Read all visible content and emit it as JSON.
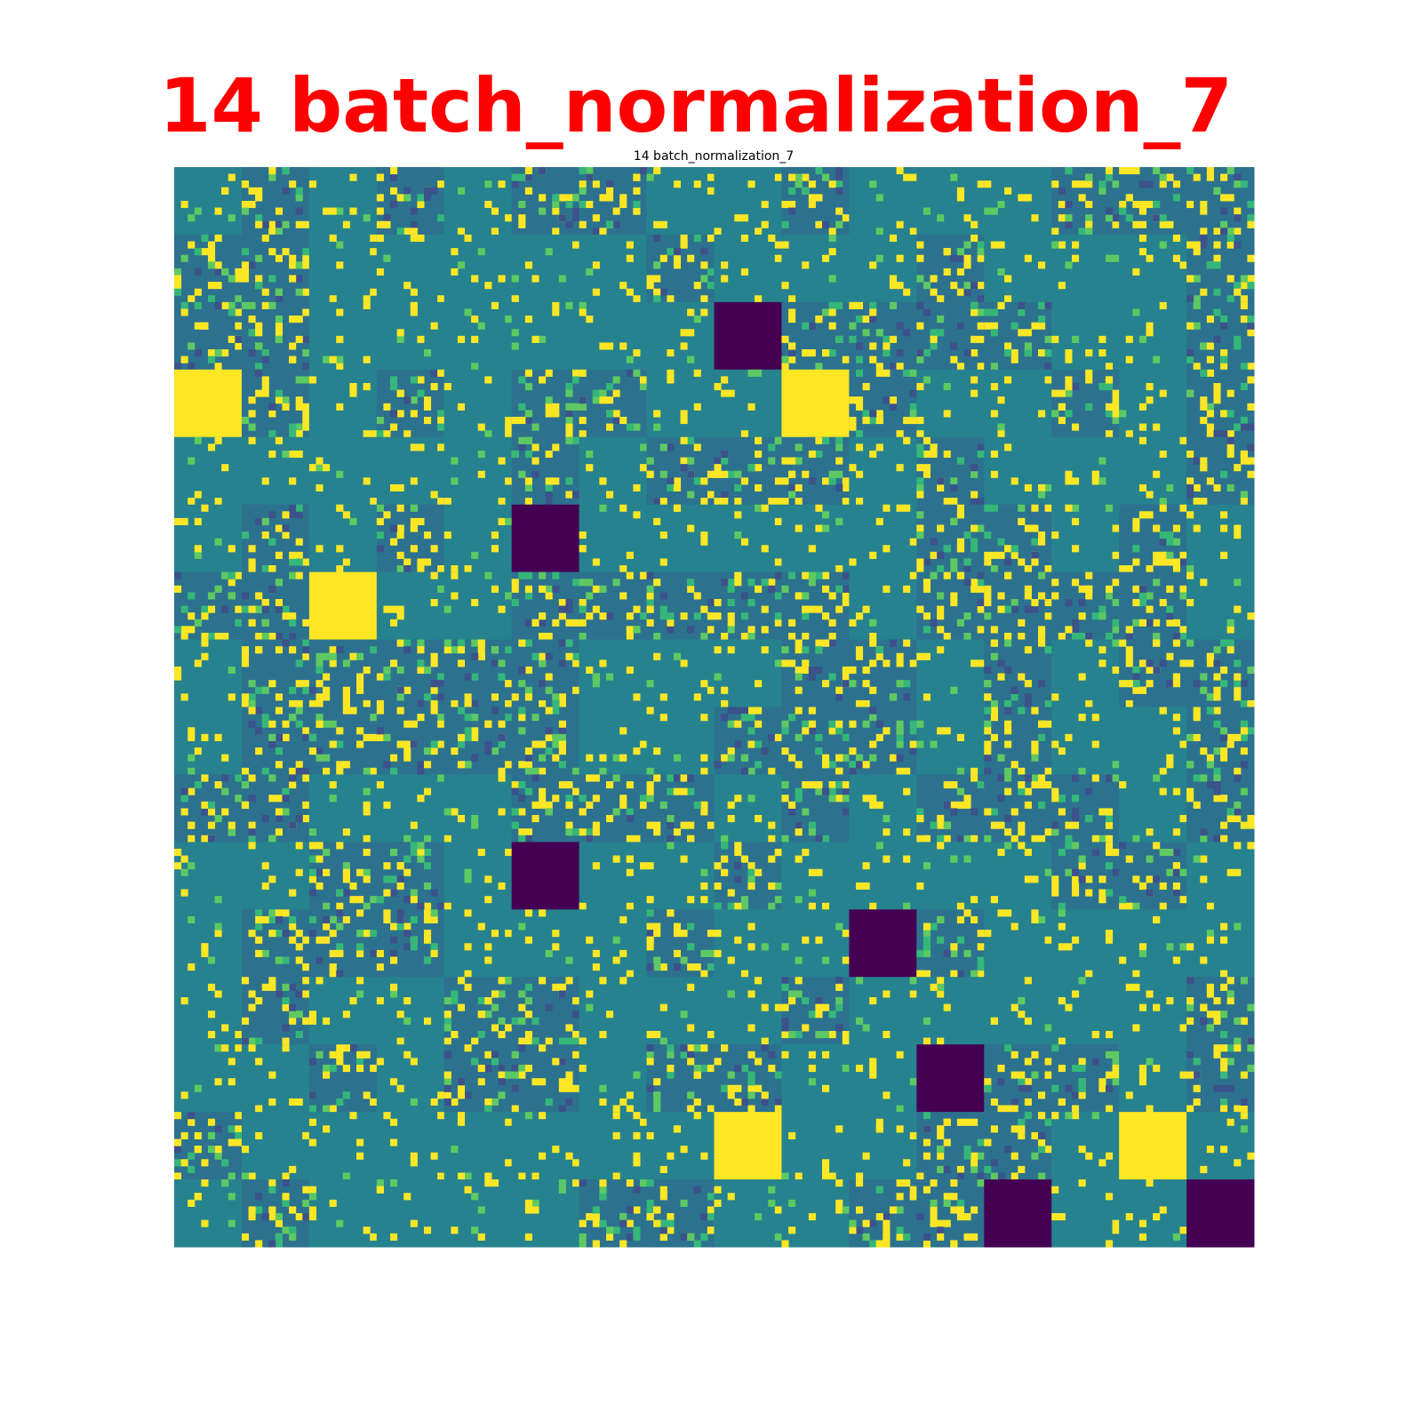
{
  "header": {
    "title": "14 batch_normalization_7"
  },
  "figure": {
    "title": "14 batch_normalization_7"
  }
}
